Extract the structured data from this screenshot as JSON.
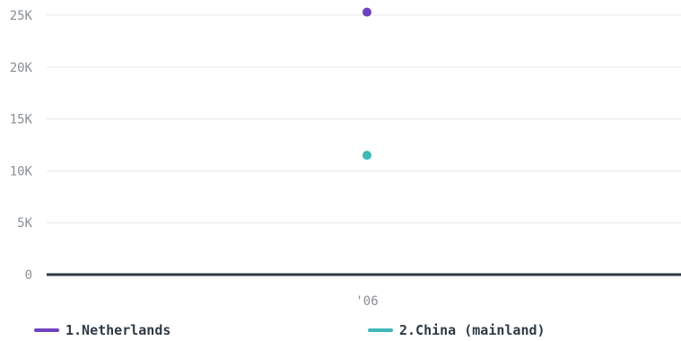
{
  "chart_data": {
    "type": "scatter",
    "title": "",
    "xlabel": "",
    "ylabel": "",
    "categories": [
      "'06"
    ],
    "ylim": [
      0,
      25000
    ],
    "yticks": [
      {
        "value": 0,
        "label": "0"
      },
      {
        "value": 5000,
        "label": "5K"
      },
      {
        "value": 10000,
        "label": "10K"
      },
      {
        "value": 15000,
        "label": "15K"
      },
      {
        "value": 20000,
        "label": "20K"
      },
      {
        "value": 25000,
        "label": "25K"
      }
    ],
    "grid": true,
    "legend_position": "bottom",
    "series": [
      {
        "name": "1.Netherlands",
        "color": "#6f42c1",
        "values": [
          25300
        ]
      },
      {
        "name": "2.China (mainland)",
        "color": "#3fb8b8",
        "values": [
          11500
        ]
      }
    ]
  },
  "colors": {
    "grid": "#e6e8ea",
    "axis": "#2f3a44",
    "tick_text": "#8a8f94",
    "legend_text": "#2e3a45"
  }
}
